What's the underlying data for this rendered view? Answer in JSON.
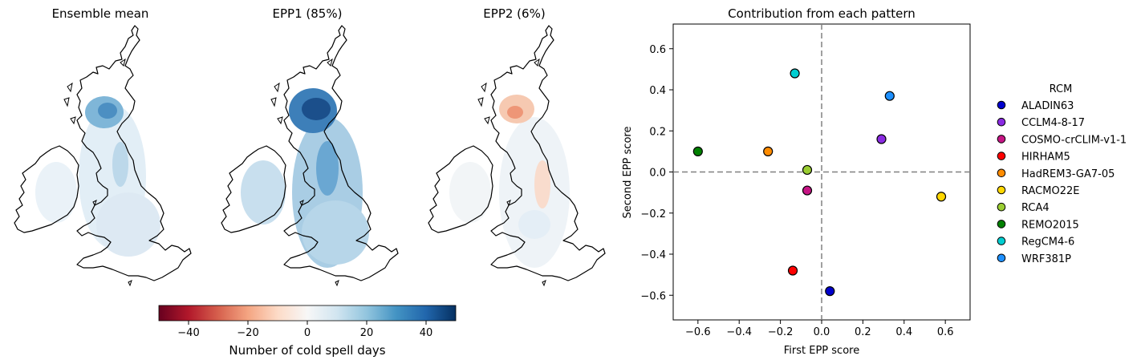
{
  "map_panels": [
    {
      "title": "Ensemble mean",
      "pattern": "mean"
    },
    {
      "title": "EPP1 (85%)",
      "pattern": "epp1"
    },
    {
      "title": "EPP2 (6%)",
      "pattern": "epp2"
    }
  ],
  "colorbar": {
    "label": "Number of cold spell days",
    "min": -50,
    "max": 50,
    "ticks": [
      -40,
      -20,
      0,
      20,
      40
    ],
    "tick_labels": [
      "−40",
      "−20",
      "0",
      "20",
      "40"
    ],
    "colormap": "RdBu",
    "colors": [
      "#67001f",
      "#b2182b",
      "#d6604d",
      "#f4a582",
      "#fddbc7",
      "#f7f7f7",
      "#d1e5f0",
      "#92c5de",
      "#4393c3",
      "#2166ac",
      "#053061"
    ]
  },
  "chart_data": {
    "type": "scatter",
    "title": "Contribution from each pattern",
    "xlabel": "First EPP score",
    "ylabel": "Second EPP score",
    "xlim": [
      -0.72,
      0.72
    ],
    "ylim": [
      -0.72,
      0.72
    ],
    "xticks": [
      -0.6,
      -0.4,
      -0.2,
      0.0,
      0.2,
      0.4,
      0.6
    ],
    "xtick_labels": [
      "−0.6",
      "−0.4",
      "−0.2",
      "0.0",
      "0.2",
      "0.4",
      "0.6"
    ],
    "yticks": [
      -0.6,
      -0.4,
      -0.2,
      0.0,
      0.2,
      0.4,
      0.6
    ],
    "ytick_labels": [
      "−0.6",
      "−0.4",
      "−0.2",
      "0.0",
      "0.2",
      "0.4",
      "0.6"
    ],
    "reference_lines": {
      "x": 0,
      "y": 0,
      "style": "dashed",
      "color": "#808080"
    },
    "grid": false,
    "legend": {
      "title": "RCM",
      "placement": "outside-right"
    },
    "series": [
      {
        "name": "ALADIN63",
        "color": "#0000cd",
        "x": 0.04,
        "y": -0.58
      },
      {
        "name": "CCLM4-8-17",
        "color": "#8a2be2",
        "x": 0.29,
        "y": 0.16
      },
      {
        "name": "COSMO-crCLIM-v1-1",
        "color": "#c71585",
        "x": -0.07,
        "y": -0.09
      },
      {
        "name": "HIRHAM5",
        "color": "#ff0000",
        "x": -0.14,
        "y": -0.48
      },
      {
        "name": "HadREM3-GA7-05",
        "color": "#ff8c00",
        "x": -0.26,
        "y": 0.1
      },
      {
        "name": "RACMO22E",
        "color": "#ffd700",
        "x": 0.58,
        "y": -0.12
      },
      {
        "name": "RCA4",
        "color": "#9acd32",
        "x": -0.07,
        "y": 0.01
      },
      {
        "name": "REMO2015",
        "color": "#008000",
        "x": -0.6,
        "y": 0.1
      },
      {
        "name": "RegCM4-6",
        "color": "#00ced1",
        "x": -0.13,
        "y": 0.48
      },
      {
        "name": "WRF381P",
        "color": "#1e90ff",
        "x": 0.33,
        "y": 0.37
      }
    ]
  }
}
